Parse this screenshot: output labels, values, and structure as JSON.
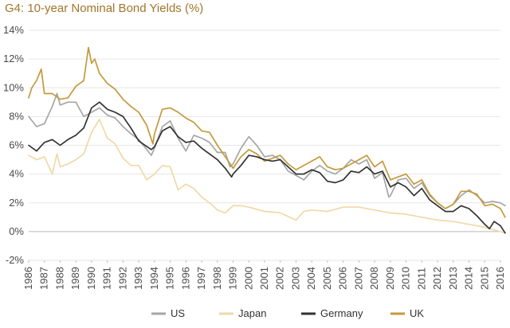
{
  "chart_data": {
    "type": "line",
    "title": "G4: 10-year Nominal Bond Yields (%)",
    "xlabel": "",
    "ylabel": "",
    "ylim": [
      -2,
      14
    ],
    "xlim": [
      1986,
      2016
    ],
    "y_ticks": [
      "-2%",
      "0%",
      "2%",
      "4%",
      "6%",
      "8%",
      "10%",
      "12%",
      "14%"
    ],
    "y_tick_values": [
      -2,
      0,
      2,
      4,
      6,
      8,
      10,
      12,
      14
    ],
    "x_ticks": [
      "1986",
      "1987",
      "1988",
      "1989",
      "1990",
      "1991",
      "1992",
      "1993",
      "1994",
      "1995",
      "1996",
      "1997",
      "1998",
      "1999",
      "2000",
      "2001",
      "2002",
      "2003",
      "2004",
      "2005",
      "2006",
      "2007",
      "2008",
      "2009",
      "2010",
      "2011",
      "2012",
      "2013",
      "2014",
      "2015",
      "2016"
    ],
    "grid": "horizontal",
    "legend_position": "bottom",
    "series": [
      {
        "name": "US",
        "color": "#a6a6a6",
        "x": [
          1986.0,
          1986.5,
          1987.0,
          1987.5,
          1987.8,
          1988.0,
          1988.5,
          1989.0,
          1989.5,
          1990.0,
          1990.5,
          1991.0,
          1991.5,
          1992.0,
          1992.5,
          1993.0,
          1993.8,
          1994.0,
          1994.5,
          1995.0,
          1995.5,
          1996.0,
          1996.5,
          1997.0,
          1997.5,
          1998.0,
          1998.5,
          1998.8,
          1999.0,
          1999.5,
          2000.0,
          2000.5,
          2001.0,
          2001.5,
          2002.0,
          2002.5,
          2003.0,
          2003.5,
          2004.0,
          2004.5,
          2005.0,
          2005.5,
          2006.0,
          2006.5,
          2007.0,
          2007.5,
          2008.0,
          2008.5,
          2008.9,
          2009.0,
          2009.5,
          2010.0,
          2010.5,
          2011.0,
          2011.5,
          2012.0,
          2012.5,
          2013.0,
          2013.5,
          2014.0,
          2014.5,
          2015.0,
          2015.5,
          2016.0,
          2016.3
        ],
        "values": [
          8.0,
          7.3,
          7.5,
          8.7,
          9.6,
          8.8,
          9.0,
          9.0,
          8.0,
          8.3,
          8.6,
          8.1,
          7.9,
          7.3,
          6.8,
          6.4,
          5.3,
          5.8,
          7.3,
          7.7,
          6.5,
          5.6,
          6.7,
          6.5,
          6.2,
          5.5,
          5.5,
          4.5,
          4.7,
          5.8,
          6.6,
          6.0,
          5.2,
          5.3,
          5.0,
          4.2,
          3.9,
          3.6,
          4.2,
          4.6,
          4.2,
          4.0,
          4.4,
          5.0,
          4.7,
          5.0,
          3.7,
          4.1,
          2.4,
          2.5,
          3.6,
          3.7,
          3.0,
          3.4,
          2.5,
          2.0,
          1.6,
          1.9,
          2.5,
          2.9,
          2.5,
          2.0,
          2.1,
          2.0,
          1.8
        ]
      },
      {
        "name": "Japan",
        "color": "#efd9a8",
        "x": [
          1986.0,
          1986.5,
          1987.0,
          1987.5,
          1987.8,
          1988.0,
          1988.5,
          1989.0,
          1989.5,
          1990.0,
          1990.5,
          1991.0,
          1991.5,
          1992.0,
          1992.5,
          1993.0,
          1993.5,
          1994.0,
          1994.5,
          1995.0,
          1995.5,
          1996.0,
          1996.5,
          1997.0,
          1997.5,
          1998.0,
          1998.5,
          1999.0,
          1999.5,
          2000.0,
          2001.0,
          2002.0,
          2003.0,
          2003.5,
          2004.0,
          2005.0,
          2006.0,
          2007.0,
          2008.0,
          2009.0,
          2010.0,
          2011.0,
          2012.0,
          2013.0,
          2014.0,
          2015.0,
          2016.0,
          2016.3
        ],
        "values": [
          5.3,
          5.0,
          5.2,
          4.0,
          5.4,
          4.5,
          4.7,
          5.0,
          5.4,
          6.9,
          7.8,
          6.5,
          6.1,
          5.1,
          4.6,
          4.6,
          3.6,
          4.0,
          4.6,
          4.5,
          2.9,
          3.3,
          3.0,
          2.4,
          2.0,
          1.5,
          1.3,
          1.8,
          1.8,
          1.7,
          1.4,
          1.3,
          0.8,
          1.4,
          1.5,
          1.4,
          1.7,
          1.7,
          1.5,
          1.3,
          1.2,
          1.0,
          0.8,
          0.7,
          0.5,
          0.3,
          0.0,
          -0.1
        ]
      },
      {
        "name": "Germany",
        "color": "#333333",
        "x": [
          1986.0,
          1986.5,
          1987.0,
          1987.5,
          1988.0,
          1988.5,
          1989.0,
          1989.5,
          1990.0,
          1990.5,
          1991.0,
          1991.5,
          1992.0,
          1992.5,
          1993.0,
          1993.8,
          1994.0,
          1994.5,
          1995.0,
          1995.5,
          1996.0,
          1996.5,
          1997.0,
          1997.5,
          1998.0,
          1998.5,
          1998.9,
          1999.0,
          1999.5,
          2000.0,
          2000.5,
          2001.0,
          2001.5,
          2002.0,
          2002.5,
          2003.0,
          2003.5,
          2004.0,
          2004.5,
          2005.0,
          2005.5,
          2006.0,
          2006.5,
          2007.0,
          2007.5,
          2008.0,
          2008.5,
          2009.0,
          2009.5,
          2010.0,
          2010.5,
          2011.0,
          2011.5,
          2012.0,
          2012.5,
          2013.0,
          2013.5,
          2014.0,
          2014.5,
          2015.0,
          2015.3,
          2015.6,
          2016.0,
          2016.3
        ],
        "values": [
          6.0,
          5.6,
          6.2,
          6.4,
          6.0,
          6.4,
          6.7,
          7.2,
          8.6,
          9.0,
          8.5,
          8.3,
          8.0,
          7.2,
          6.3,
          5.7,
          5.9,
          7.0,
          7.3,
          6.6,
          6.2,
          6.3,
          5.8,
          5.4,
          5.0,
          4.4,
          3.8,
          4.0,
          4.6,
          5.3,
          5.2,
          5.0,
          4.9,
          5.0,
          4.5,
          4.0,
          4.0,
          4.3,
          4.1,
          3.5,
          3.4,
          3.6,
          4.2,
          4.1,
          4.5,
          4.0,
          4.2,
          3.1,
          3.4,
          3.1,
          2.5,
          3.0,
          2.2,
          1.8,
          1.4,
          1.4,
          1.8,
          1.6,
          1.1,
          0.5,
          0.2,
          0.7,
          0.4,
          -0.1
        ]
      },
      {
        "name": "UK",
        "color": "#c49a3c",
        "x": [
          1986.0,
          1986.2,
          1986.5,
          1986.8,
          1987.0,
          1987.5,
          1988.0,
          1988.5,
          1989.0,
          1989.5,
          1989.8,
          1990.0,
          1990.2,
          1990.5,
          1991.0,
          1991.5,
          1992.0,
          1992.5,
          1993.0,
          1993.5,
          1993.9,
          1994.0,
          1994.5,
          1995.0,
          1995.5,
          1996.0,
          1996.5,
          1997.0,
          1997.5,
          1998.0,
          1998.5,
          1999.0,
          1999.5,
          2000.0,
          2000.5,
          2001.0,
          2001.5,
          2002.0,
          2002.5,
          2003.0,
          2003.5,
          2004.0,
          2004.5,
          2005.0,
          2005.5,
          2006.0,
          2006.5,
          2007.0,
          2007.5,
          2008.0,
          2008.5,
          2009.0,
          2009.5,
          2010.0,
          2010.5,
          2011.0,
          2011.5,
          2012.0,
          2012.5,
          2013.0,
          2013.5,
          2014.0,
          2014.5,
          2015.0,
          2015.5,
          2016.0,
          2016.3
        ],
        "values": [
          9.3,
          10.0,
          10.5,
          11.3,
          9.6,
          9.6,
          9.2,
          9.3,
          10.1,
          10.5,
          12.8,
          11.7,
          12.0,
          11.0,
          10.3,
          9.9,
          9.2,
          8.7,
          8.3,
          7.4,
          6.1,
          6.8,
          8.5,
          8.6,
          8.3,
          7.9,
          7.6,
          7.0,
          6.9,
          6.0,
          5.2,
          4.4,
          5.2,
          5.7,
          5.4,
          4.9,
          5.1,
          5.3,
          4.7,
          4.3,
          4.6,
          4.9,
          5.2,
          4.5,
          4.3,
          4.4,
          4.7,
          5.0,
          5.3,
          4.5,
          4.9,
          3.6,
          3.8,
          4.0,
          3.3,
          3.6,
          2.6,
          2.0,
          1.6,
          1.9,
          2.8,
          2.8,
          2.6,
          1.8,
          1.9,
          1.6,
          1.0
        ]
      }
    ]
  },
  "legend": [
    {
      "label": "US",
      "color": "#a6a6a6"
    },
    {
      "label": "Japan",
      "color": "#efd9a8"
    },
    {
      "label": "Germany",
      "color": "#333333"
    },
    {
      "label": "UK",
      "color": "#c49a3c"
    }
  ]
}
